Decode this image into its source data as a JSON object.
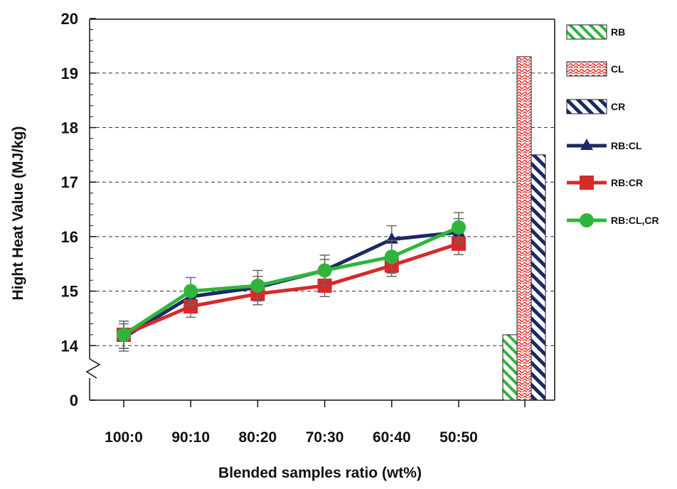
{
  "chart_data": {
    "type": "line",
    "xlabel": "Blended samples ratio (wt%)",
    "ylabel": "Hight Heat Value  (MJ/kg)",
    "categories": [
      "100:0",
      "90:10",
      "80:20",
      "70:30",
      "60:40",
      "50:50"
    ],
    "y_ticks": [
      "0",
      "14",
      "15",
      "16",
      "17",
      "18",
      "19",
      "20"
    ],
    "ylim": [
      13,
      20
    ],
    "axis_break": true,
    "grid": "horizontal dashed",
    "legend_position": "right",
    "series": [
      {
        "name": "RB:CL",
        "marker": "triangle",
        "color": "#1c2a63",
        "values": [
          14.15,
          14.9,
          15.07,
          15.38,
          15.95,
          16.08
        ],
        "errors": [
          0.25,
          0.15,
          0.2,
          0.2,
          0.25,
          0.25
        ]
      },
      {
        "name": "RB:CR",
        "marker": "square",
        "color": "#d42b2b",
        "values": [
          14.2,
          14.72,
          14.95,
          15.1,
          15.47,
          15.87
        ],
        "errors": [
          0.25,
          0.2,
          0.2,
          0.2,
          0.2,
          0.2
        ]
      },
      {
        "name": "RB:CL,CR",
        "marker": "circle",
        "color": "#2fb53c",
        "values": [
          14.2,
          15.0,
          15.1,
          15.38,
          15.63,
          16.17
        ],
        "errors": [
          0.25,
          0.25,
          0.28,
          0.28,
          0.3,
          0.27
        ]
      }
    ],
    "bars": [
      {
        "name": "RB",
        "value": 14.2,
        "pattern": "green diagonal hatch",
        "color": "#2fb53c"
      },
      {
        "name": "CL",
        "value": 19.3,
        "pattern": "red wavy",
        "color": "#e0302f"
      },
      {
        "name": "CR",
        "value": 17.5,
        "pattern": "navy diagonal hatch",
        "color": "#1c2a63"
      }
    ]
  }
}
